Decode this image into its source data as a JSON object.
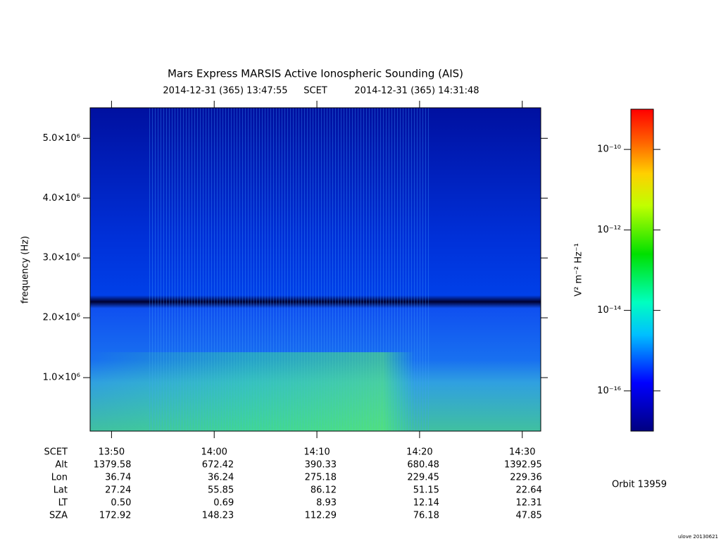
{
  "chart_data": {
    "type": "spectrogram",
    "title": "Mars Express MARSIS Active Ionospheric Sounding (AIS)",
    "start": "2014-12-31 (365) 13:47:55",
    "time_system": "SCET",
    "end": "2014-12-31 (365) 14:31:48",
    "ylabel": "frequency (Hz)",
    "ylim": [
      106000,
      5510000
    ],
    "yticks": [
      {
        "value": 1000000,
        "label": "1.0×10⁶"
      },
      {
        "value": 2000000,
        "label": "2.0×10⁶"
      },
      {
        "value": 3000000,
        "label": "3.0×10⁶"
      },
      {
        "value": 4000000,
        "label": "4.0×10⁶"
      },
      {
        "value": 5000000,
        "label": "5.0×10⁶"
      }
    ],
    "xlim": [
      827.9167,
      871.8
    ],
    "xlabel": "SCET",
    "xticks": [
      {
        "value": 830,
        "label": "13:50"
      },
      {
        "value": 840,
        "label": "14:00"
      },
      {
        "value": 850,
        "label": "14:10"
      },
      {
        "value": 860,
        "label": "14:20"
      },
      {
        "value": 870,
        "label": "14:30"
      }
    ],
    "ephemeris": {
      "labels": [
        "Alt",
        "Lon",
        "Lat",
        "LT",
        "SZA"
      ],
      "rows": [
        [
          "1379.58",
          "672.42",
          "390.33",
          "680.48",
          "1392.95"
        ],
        [
          "36.74",
          "36.24",
          "275.18",
          "229.45",
          "229.36"
        ],
        [
          "27.24",
          "55.85",
          "86.12",
          "51.15",
          "22.64"
        ],
        [
          "0.50",
          "0.69",
          "8.93",
          "12.14",
          "12.31"
        ],
        [
          "172.92",
          "148.23",
          "112.29",
          "76.18",
          "47.85"
        ]
      ]
    },
    "colorbar": {
      "label": "V² m⁻² Hz⁻¹",
      "log": true,
      "lim": [
        1e-17,
        1e-09
      ],
      "ticks": [
        {
          "value": 1e-10,
          "label": "10⁻¹⁰"
        },
        {
          "value": 1e-12,
          "label": "10⁻¹²"
        },
        {
          "value": 1e-14,
          "label": "10⁻¹⁴"
        },
        {
          "value": 1e-16,
          "label": "10⁻¹⁶"
        }
      ]
    },
    "orbit": "Orbit 13959",
    "footer": "ulove 20130621"
  }
}
